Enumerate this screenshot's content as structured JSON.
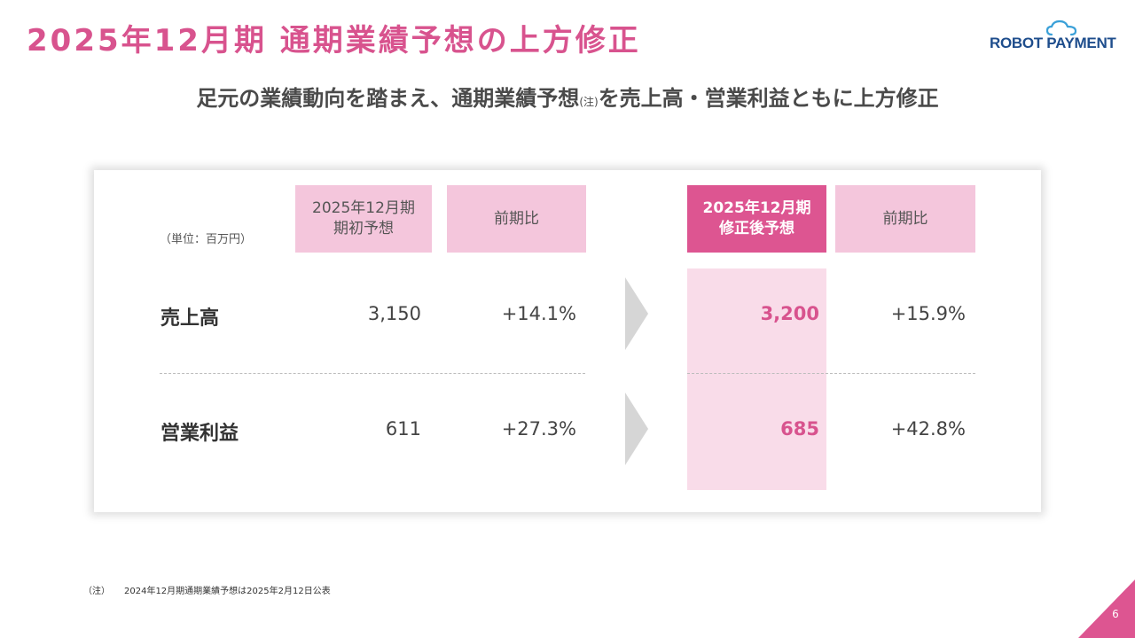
{
  "slide": {
    "title": "2025年12月期 通期業績予想の上方修正",
    "subtitle_main": "足元の業績動向を踏まえ、通期業績予想",
    "subtitle_note": "(注)",
    "subtitle_rest": "を売上高・営業利益ともに上方修正",
    "page_number": "6"
  },
  "logo": {
    "text": "ROBOT PAYMENT",
    "icon": "cloud-icon",
    "color": "#1e4d8c",
    "icon_color": "#3aa0d8"
  },
  "table": {
    "unit_label": "（単位：百万円）",
    "headers": {
      "initial_forecast": "2025年12月期\n期初予想",
      "yoy_initial": "前期比",
      "revised_forecast": "2025年12月期\n修正後予想",
      "yoy_revised": "前期比"
    },
    "rows": [
      {
        "label": "売上高",
        "initial": "3,150",
        "initial_yoy": "+14.1%",
        "revised": "3,200",
        "revised_yoy": "+15.9%"
      },
      {
        "label": "営業利益",
        "initial": "611",
        "initial_yoy": "+27.3%",
        "revised": "685",
        "revised_yoy": "+42.8%"
      }
    ],
    "arrow_icon": "chevron-right-icon"
  },
  "footnote": {
    "marker": "（注）",
    "text": "2024年12月期通期業績予想は2025年2月12日公表"
  },
  "colors": {
    "accent": "#d8538e",
    "header_light": "#f4c6dc",
    "header_strong": "#dd5591",
    "highlight_column": "#f9dce9"
  }
}
